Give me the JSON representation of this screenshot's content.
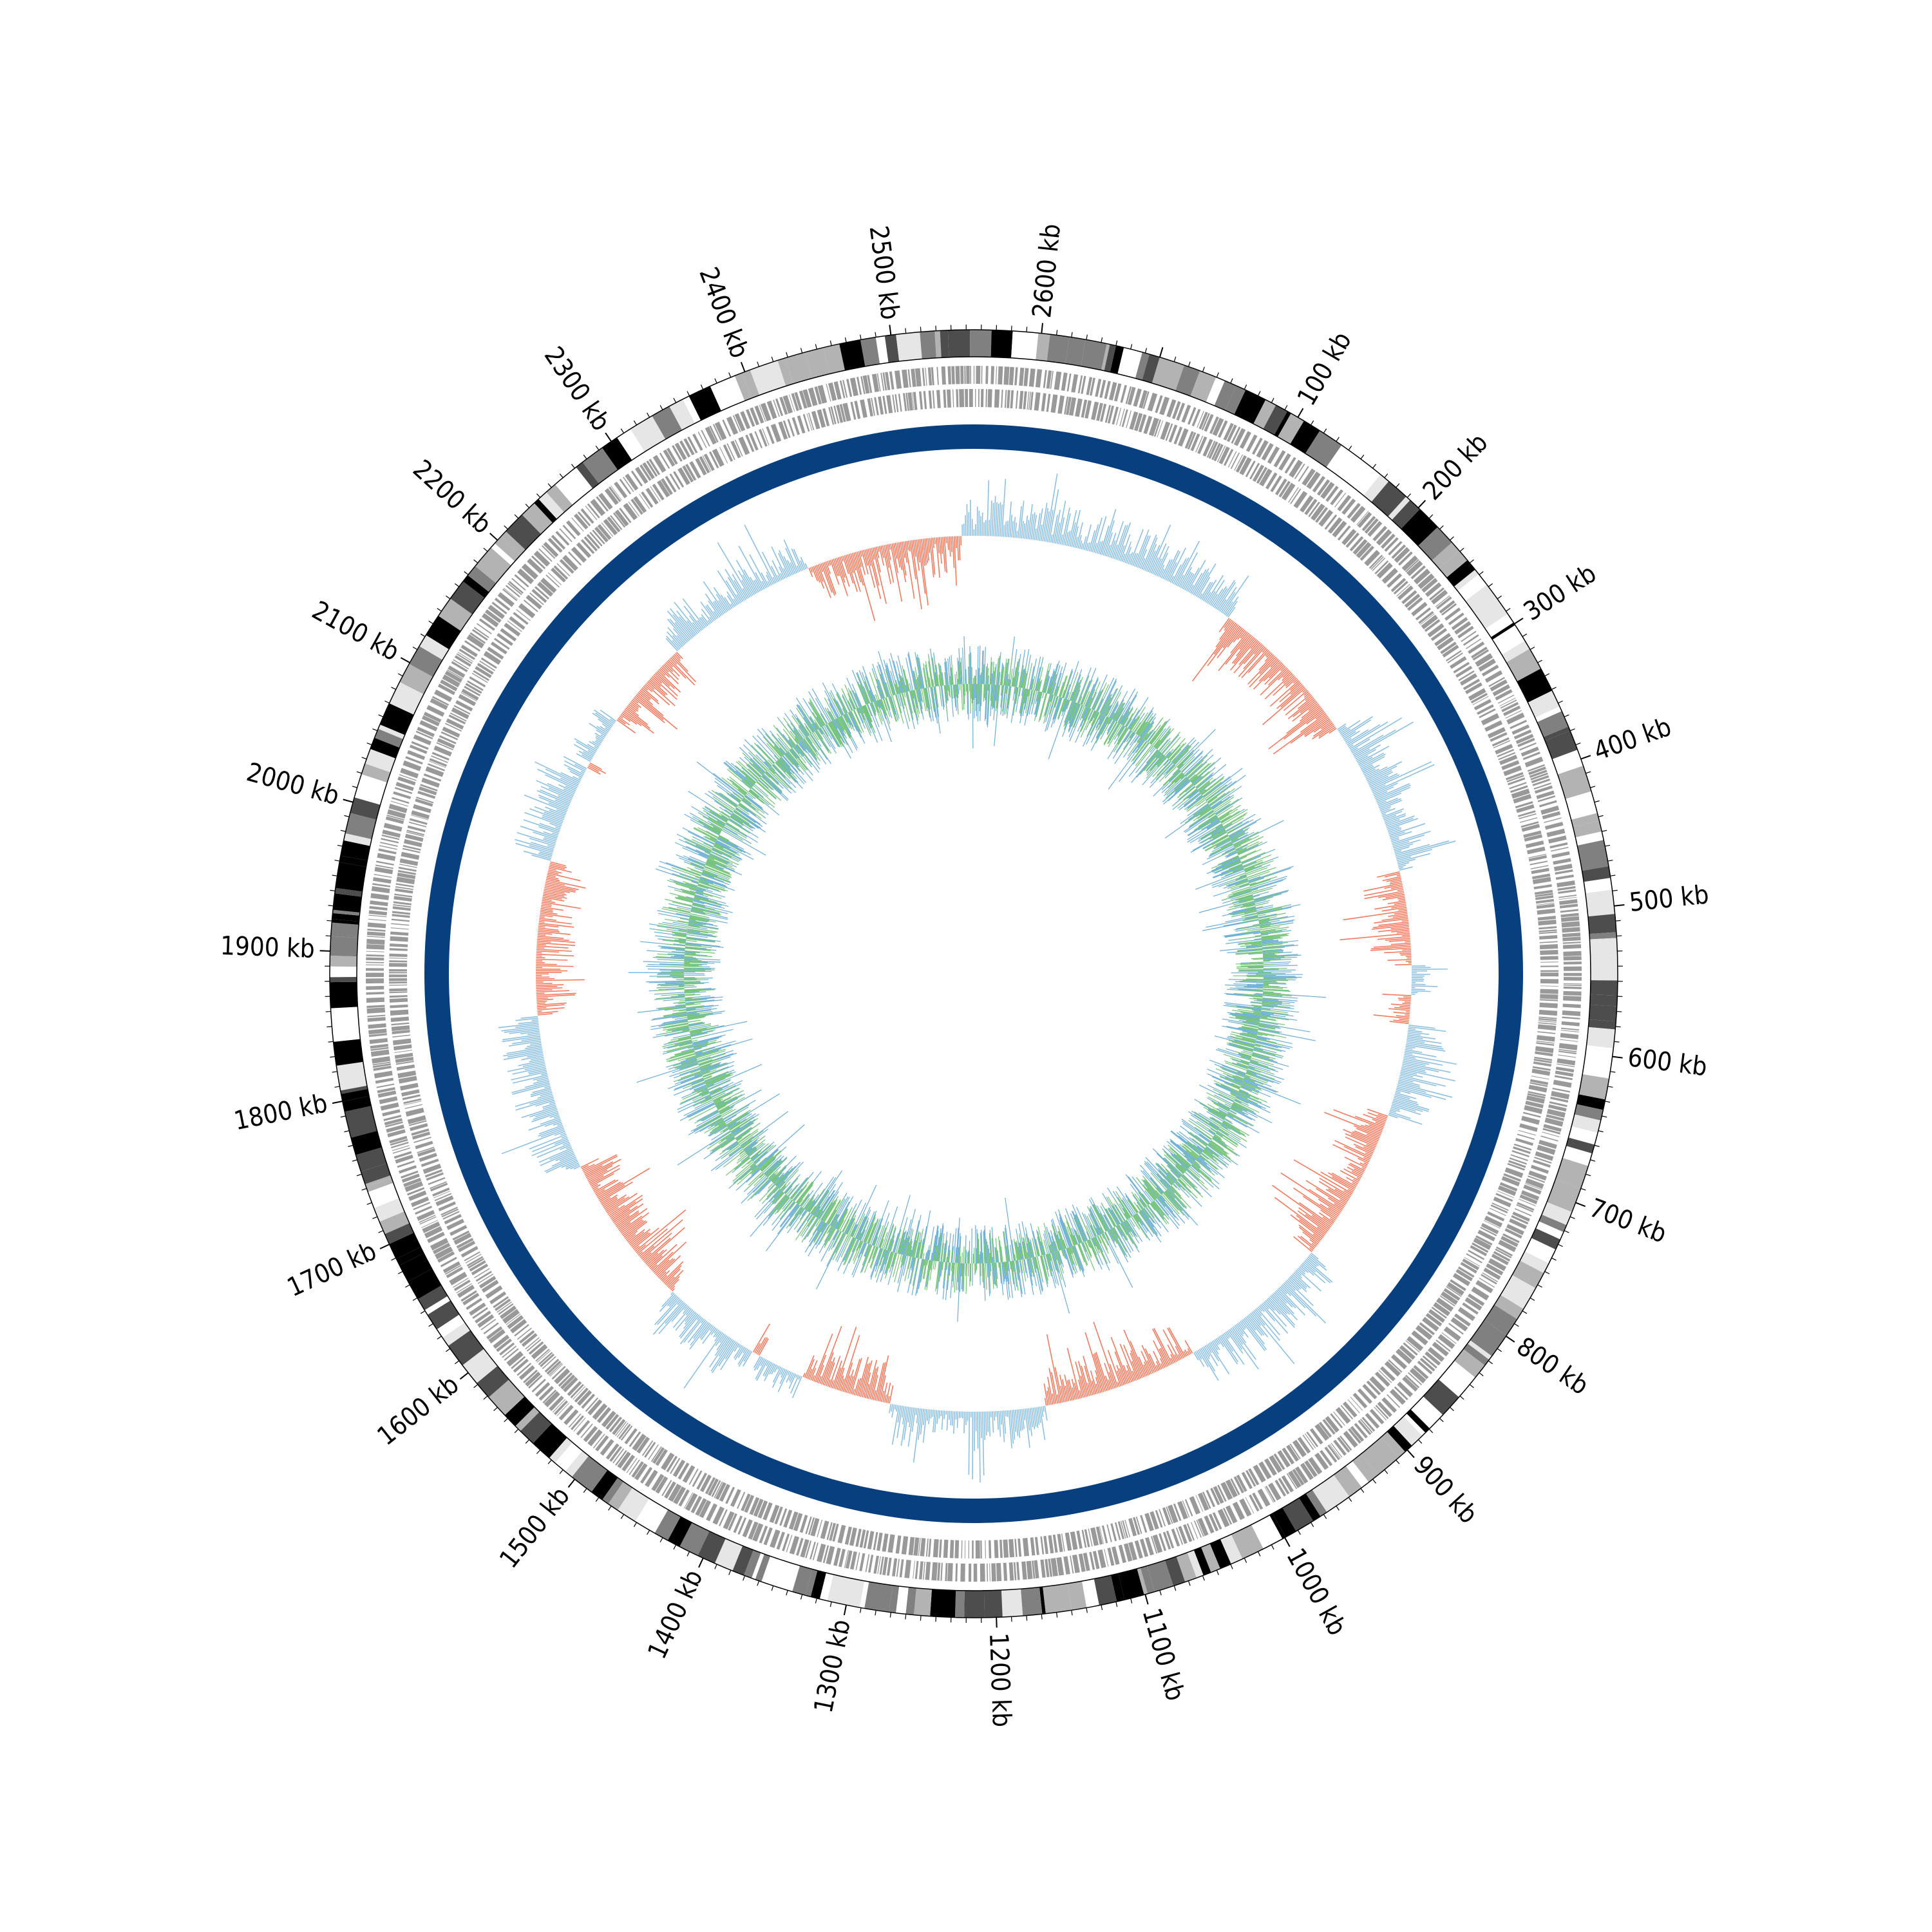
{
  "genome": {
    "axis_labels": [
      "100 kb",
      "200 kb",
      "300 kb",
      "400 kb",
      "500 kb",
      "600 kb",
      "700 kb",
      "800 kb",
      "900 kb",
      "1000 kb",
      "1100 kb",
      "1200 kb",
      "1300 kb",
      "1400 kb",
      "1500 kb",
      "1600 kb",
      "1700 kb",
      "1800 kb",
      "1900 kb",
      "2000 kb",
      "2100 kb",
      "2200 kb",
      "2300 kb",
      "2400 kb",
      "2500 kb",
      "2600 kb"
    ],
    "label_positions_kb": [
      100,
      200,
      300,
      400,
      500,
      600,
      700,
      800,
      900,
      1000,
      1100,
      1200,
      1300,
      1400,
      1500,
      1600,
      1700,
      1800,
      1900,
      2000,
      2100,
      2200,
      2300,
      2400,
      2500,
      2600
    ],
    "total_length_kb": 2680,
    "rotation_offset_kb": -125
  },
  "tracks": [
    {
      "name": "ideogram-bands",
      "colors": [
        "#000000",
        "#4d4d4d",
        "#808080",
        "#b3b3b3",
        "#e6e6e6",
        "#ffffff"
      ]
    },
    {
      "name": "genes-forward",
      "color": "#999999"
    },
    {
      "name": "genes-reverse",
      "color": "#999999"
    },
    {
      "name": "backbone-ring",
      "color": "#08407f"
    },
    {
      "name": "gc-skew",
      "positive_color": "#8dc0e0",
      "negative_color": "#f27a5e"
    },
    {
      "name": "gc-content",
      "series_colors": [
        "#6baed6",
        "#74c476"
      ]
    }
  ]
}
